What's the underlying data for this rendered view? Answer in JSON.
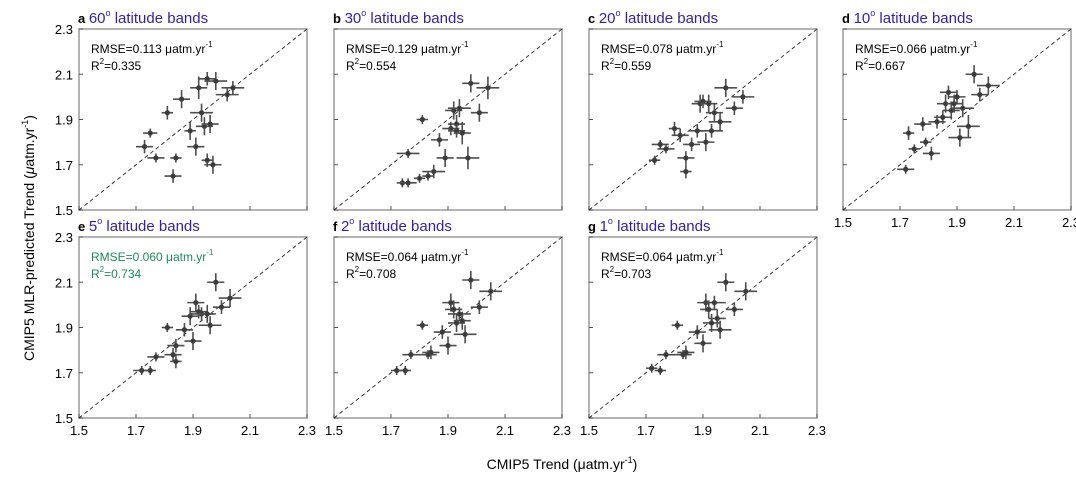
{
  "figure": {
    "ylabel": "CMIP5 MLR-predicted Trend (μatm.yr⁻¹)",
    "xlabel_main": "CMIP5 Trend (μatm.yr",
    "xlabel_sup": "-1",
    "xlabel_close": ")",
    "highlight_color": "#1a8c5c",
    "title_color": "#2e1fb0",
    "point_color": "#4d4d4d"
  },
  "chart_data": [
    {
      "type": "scatter",
      "letter": "a",
      "title_num": "60",
      "title_sup": "o",
      "title_rest": " latitude bands",
      "rmse_text": "RMSE=0.113 μatm.yr",
      "rmse_sup": "-1",
      "r2_main": "R",
      "r2_sup": "2",
      "r2_val": "=0.335",
      "highlight": false,
      "xlim": [
        1.5,
        2.3
      ],
      "ylim": [
        1.5,
        2.3
      ],
      "xticks": [
        "1.5",
        "1.7",
        "1.9",
        "2.1",
        "2.3"
      ],
      "yticks": [
        "1.5",
        "1.7",
        "1.9",
        "2.1",
        "2.3"
      ],
      "points": [
        {
          "x": 1.73,
          "y": 1.78,
          "xe": 0.03,
          "ye": 0.03
        },
        {
          "x": 1.75,
          "y": 1.84,
          "xe": 0.025,
          "ye": 0.02
        },
        {
          "x": 1.77,
          "y": 1.73,
          "xe": 0.03,
          "ye": 0.02
        },
        {
          "x": 1.81,
          "y": 1.93,
          "xe": 0.02,
          "ye": 0.03
        },
        {
          "x": 1.83,
          "y": 1.65,
          "xe": 0.03,
          "ye": 0.03
        },
        {
          "x": 1.84,
          "y": 1.73,
          "xe": 0.02,
          "ye": 0.02
        },
        {
          "x": 1.86,
          "y": 1.99,
          "xe": 0.03,
          "ye": 0.04
        },
        {
          "x": 1.89,
          "y": 1.85,
          "xe": 0.02,
          "ye": 0.04
        },
        {
          "x": 1.91,
          "y": 1.78,
          "xe": 0.03,
          "ye": 0.04
        },
        {
          "x": 1.92,
          "y": 2.04,
          "xe": 0.03,
          "ye": 0.05
        },
        {
          "x": 1.93,
          "y": 1.93,
          "xe": 0.04,
          "ye": 0.04
        },
        {
          "x": 1.94,
          "y": 1.87,
          "xe": 0.03,
          "ye": 0.04
        },
        {
          "x": 1.95,
          "y": 1.72,
          "xe": 0.02,
          "ye": 0.03
        },
        {
          "x": 1.95,
          "y": 2.08,
          "xe": 0.03,
          "ye": 0.03
        },
        {
          "x": 1.96,
          "y": 1.88,
          "xe": 0.03,
          "ye": 0.04
        },
        {
          "x": 1.97,
          "y": 1.7,
          "xe": 0.03,
          "ye": 0.04
        },
        {
          "x": 1.98,
          "y": 2.07,
          "xe": 0.04,
          "ye": 0.04
        },
        {
          "x": 2.02,
          "y": 2.01,
          "xe": 0.04,
          "ye": 0.03
        },
        {
          "x": 2.04,
          "y": 2.04,
          "xe": 0.04,
          "ye": 0.03
        }
      ]
    },
    {
      "type": "scatter",
      "letter": "b",
      "title_num": "30",
      "title_sup": "o",
      "title_rest": " latitude bands",
      "rmse_text": "RMSE=0.129 μatm.yr",
      "rmse_sup": "-1",
      "r2_main": "R",
      "r2_sup": "2",
      "r2_val": "=0.554",
      "highlight": false,
      "xlim": [
        1.5,
        2.3
      ],
      "ylim": [
        1.5,
        2.3
      ],
      "xticks": [
        "1.5",
        "1.7",
        "1.9",
        "2.1",
        "2.3"
      ],
      "yticks": [
        "1.5",
        "1.7",
        "1.9",
        "2.1",
        "2.3"
      ],
      "points": [
        {
          "x": 1.74,
          "y": 1.62,
          "xe": 0.02,
          "ye": 0.02
        },
        {
          "x": 1.76,
          "y": 1.62,
          "xe": 0.03,
          "ye": 0.02
        },
        {
          "x": 1.76,
          "y": 1.75,
          "xe": 0.04,
          "ye": 0.02
        },
        {
          "x": 1.8,
          "y": 1.64,
          "xe": 0.02,
          "ye": 0.02
        },
        {
          "x": 1.81,
          "y": 1.9,
          "xe": 0.02,
          "ye": 0.02
        },
        {
          "x": 1.83,
          "y": 1.65,
          "xe": 0.02,
          "ye": 0.02
        },
        {
          "x": 1.85,
          "y": 1.67,
          "xe": 0.04,
          "ye": 0.03
        },
        {
          "x": 1.87,
          "y": 1.81,
          "xe": 0.03,
          "ye": 0.03
        },
        {
          "x": 1.89,
          "y": 1.73,
          "xe": 0.03,
          "ye": 0.04
        },
        {
          "x": 1.91,
          "y": 1.86,
          "xe": 0.03,
          "ye": 0.03
        },
        {
          "x": 1.92,
          "y": 1.94,
          "xe": 0.03,
          "ye": 0.04
        },
        {
          "x": 1.93,
          "y": 1.88,
          "xe": 0.03,
          "ye": 0.04
        },
        {
          "x": 1.93,
          "y": 1.85,
          "xe": 0.03,
          "ye": 0.03
        },
        {
          "x": 1.94,
          "y": 1.95,
          "xe": 0.04,
          "ye": 0.04
        },
        {
          "x": 1.95,
          "y": 1.84,
          "xe": 0.03,
          "ye": 0.05
        },
        {
          "x": 1.97,
          "y": 1.73,
          "xe": 0.04,
          "ye": 0.05
        },
        {
          "x": 1.98,
          "y": 2.06,
          "xe": 0.03,
          "ye": 0.04
        },
        {
          "x": 2.01,
          "y": 1.93,
          "xe": 0.03,
          "ye": 0.04
        },
        {
          "x": 2.04,
          "y": 2.04,
          "xe": 0.04,
          "ye": 0.05
        }
      ]
    },
    {
      "type": "scatter",
      "letter": "c",
      "title_num": "20",
      "title_sup": "o",
      "title_rest": " latitude bands",
      "rmse_text": "RMSE=0.078 μatm.yr",
      "rmse_sup": "-1",
      "r2_main": "R",
      "r2_sup": "2",
      "r2_val": "=0.559",
      "highlight": false,
      "xlim": [
        1.5,
        2.3
      ],
      "ylim": [
        1.5,
        2.3
      ],
      "xticks": [
        "1.5",
        "1.7",
        "1.9",
        "2.1",
        "2.3"
      ],
      "yticks": [
        "1.5",
        "1.7",
        "1.9",
        "2.1",
        "2.3"
      ],
      "points": [
        {
          "x": 1.73,
          "y": 1.72,
          "xe": 0.02,
          "ye": 0.02
        },
        {
          "x": 1.75,
          "y": 1.79,
          "xe": 0.03,
          "ye": 0.02
        },
        {
          "x": 1.77,
          "y": 1.77,
          "xe": 0.03,
          "ye": 0.02
        },
        {
          "x": 1.8,
          "y": 1.86,
          "xe": 0.02,
          "ye": 0.03
        },
        {
          "x": 1.82,
          "y": 1.83,
          "xe": 0.03,
          "ye": 0.03
        },
        {
          "x": 1.84,
          "y": 1.73,
          "xe": 0.03,
          "ye": 0.03
        },
        {
          "x": 1.84,
          "y": 1.67,
          "xe": 0.02,
          "ye": 0.03
        },
        {
          "x": 1.86,
          "y": 1.79,
          "xe": 0.03,
          "ye": 0.03
        },
        {
          "x": 1.88,
          "y": 1.85,
          "xe": 0.03,
          "ye": 0.03
        },
        {
          "x": 1.89,
          "y": 1.97,
          "xe": 0.03,
          "ye": 0.04
        },
        {
          "x": 1.9,
          "y": 1.98,
          "xe": 0.03,
          "ye": 0.03
        },
        {
          "x": 1.91,
          "y": 1.8,
          "xe": 0.03,
          "ye": 0.04
        },
        {
          "x": 1.92,
          "y": 1.97,
          "xe": 0.03,
          "ye": 0.04
        },
        {
          "x": 1.93,
          "y": 1.85,
          "xe": 0.04,
          "ye": 0.03
        },
        {
          "x": 1.94,
          "y": 1.93,
          "xe": 0.03,
          "ye": 0.04
        },
        {
          "x": 1.96,
          "y": 1.89,
          "xe": 0.04,
          "ye": 0.04
        },
        {
          "x": 1.98,
          "y": 2.04,
          "xe": 0.04,
          "ye": 0.04
        },
        {
          "x": 2.01,
          "y": 1.95,
          "xe": 0.03,
          "ye": 0.03
        },
        {
          "x": 2.04,
          "y": 2.0,
          "xe": 0.04,
          "ye": 0.03
        }
      ]
    },
    {
      "type": "scatter",
      "letter": "d",
      "title_num": "10",
      "title_sup": "o",
      "title_rest": " latitude bands",
      "rmse_text": "RMSE=0.066 μatm.yr",
      "rmse_sup": "-1",
      "r2_main": "R",
      "r2_sup": "2",
      "r2_val": "=0.667",
      "highlight": false,
      "xlim": [
        1.5,
        2.3
      ],
      "ylim": [
        1.5,
        2.3
      ],
      "xticks": [
        "1.5",
        "1.7",
        "1.9",
        "2.1",
        "2.3"
      ],
      "yticks": [
        "1.5",
        "1.7",
        "1.9",
        "2.1",
        "2.3"
      ],
      "points": [
        {
          "x": 1.72,
          "y": 1.68,
          "xe": 0.03,
          "ye": 0.02
        },
        {
          "x": 1.73,
          "y": 1.84,
          "xe": 0.02,
          "ye": 0.03
        },
        {
          "x": 1.75,
          "y": 1.77,
          "xe": 0.02,
          "ye": 0.02
        },
        {
          "x": 1.78,
          "y": 1.88,
          "xe": 0.03,
          "ye": 0.03
        },
        {
          "x": 1.79,
          "y": 1.8,
          "xe": 0.02,
          "ye": 0.02
        },
        {
          "x": 1.81,
          "y": 1.75,
          "xe": 0.03,
          "ye": 0.03
        },
        {
          "x": 1.83,
          "y": 1.89,
          "xe": 0.03,
          "ye": 0.03
        },
        {
          "x": 1.85,
          "y": 1.91,
          "xe": 0.03,
          "ye": 0.03
        },
        {
          "x": 1.86,
          "y": 1.97,
          "xe": 0.03,
          "ye": 0.04
        },
        {
          "x": 1.87,
          "y": 2.02,
          "xe": 0.03,
          "ye": 0.03
        },
        {
          "x": 1.88,
          "y": 1.94,
          "xe": 0.03,
          "ye": 0.04
        },
        {
          "x": 1.89,
          "y": 1.97,
          "xe": 0.03,
          "ye": 0.04
        },
        {
          "x": 1.9,
          "y": 2.0,
          "xe": 0.03,
          "ye": 0.03
        },
        {
          "x": 1.91,
          "y": 1.82,
          "xe": 0.04,
          "ye": 0.04
        },
        {
          "x": 1.92,
          "y": 1.95,
          "xe": 0.04,
          "ye": 0.04
        },
        {
          "x": 1.94,
          "y": 1.87,
          "xe": 0.04,
          "ye": 0.05
        },
        {
          "x": 1.96,
          "y": 2.1,
          "xe": 0.03,
          "ye": 0.04
        },
        {
          "x": 1.98,
          "y": 2.01,
          "xe": 0.03,
          "ye": 0.03
        },
        {
          "x": 2.01,
          "y": 2.05,
          "xe": 0.04,
          "ye": 0.04
        }
      ]
    },
    {
      "type": "scatter",
      "letter": "e",
      "title_num": "5",
      "title_sup": "o",
      "title_rest": " latitude bands",
      "rmse_text": "RMSE=0.060 μatm.yr",
      "rmse_sup": "-1",
      "r2_main": "R",
      "r2_sup": "2",
      "r2_val": "=0.734",
      "highlight": true,
      "xlim": [
        1.5,
        2.3
      ],
      "ylim": [
        1.5,
        2.3
      ],
      "xticks": [
        "1.5",
        "1.7",
        "1.9",
        "2.1",
        "2.3"
      ],
      "yticks": [
        "1.5",
        "1.7",
        "1.9",
        "2.1",
        "2.3"
      ],
      "points": [
        {
          "x": 1.72,
          "y": 1.71,
          "xe": 0.03,
          "ye": 0.02
        },
        {
          "x": 1.75,
          "y": 1.71,
          "xe": 0.02,
          "ye": 0.02
        },
        {
          "x": 1.77,
          "y": 1.77,
          "xe": 0.03,
          "ye": 0.02
        },
        {
          "x": 1.81,
          "y": 1.9,
          "xe": 0.02,
          "ye": 0.02
        },
        {
          "x": 1.83,
          "y": 1.78,
          "xe": 0.03,
          "ye": 0.03
        },
        {
          "x": 1.84,
          "y": 1.75,
          "xe": 0.02,
          "ye": 0.03
        },
        {
          "x": 1.84,
          "y": 1.82,
          "xe": 0.03,
          "ye": 0.03
        },
        {
          "x": 1.87,
          "y": 1.89,
          "xe": 0.03,
          "ye": 0.03
        },
        {
          "x": 1.89,
          "y": 1.95,
          "xe": 0.03,
          "ye": 0.04
        },
        {
          "x": 1.9,
          "y": 1.84,
          "xe": 0.03,
          "ye": 0.04
        },
        {
          "x": 1.91,
          "y": 2.01,
          "xe": 0.03,
          "ye": 0.04
        },
        {
          "x": 1.92,
          "y": 1.97,
          "xe": 0.03,
          "ye": 0.03
        },
        {
          "x": 1.93,
          "y": 1.96,
          "xe": 0.04,
          "ye": 0.03
        },
        {
          "x": 1.95,
          "y": 1.96,
          "xe": 0.03,
          "ye": 0.04
        },
        {
          "x": 1.96,
          "y": 1.91,
          "xe": 0.04,
          "ye": 0.04
        },
        {
          "x": 1.98,
          "y": 2.1,
          "xe": 0.03,
          "ye": 0.04
        },
        {
          "x": 2.0,
          "y": 1.99,
          "xe": 0.03,
          "ye": 0.03
        },
        {
          "x": 2.03,
          "y": 2.03,
          "xe": 0.04,
          "ye": 0.04
        }
      ]
    },
    {
      "type": "scatter",
      "letter": "f",
      "title_num": "2",
      "title_sup": "o",
      "title_rest": " latitude bands",
      "rmse_text": "RMSE=0.064 μatm.yr",
      "rmse_sup": "-1",
      "r2_main": "R",
      "r2_sup": "2",
      "r2_val": "=0.708",
      "highlight": false,
      "xlim": [
        1.5,
        2.3
      ],
      "ylim": [
        1.5,
        2.3
      ],
      "xticks": [
        "1.5",
        "1.7",
        "1.9",
        "2.1",
        "2.3"
      ],
      "yticks": [
        "1.5",
        "1.7",
        "1.9",
        "2.1",
        "2.3"
      ],
      "points": [
        {
          "x": 1.72,
          "y": 1.71,
          "xe": 0.02,
          "ye": 0.02
        },
        {
          "x": 1.75,
          "y": 1.71,
          "xe": 0.02,
          "ye": 0.02
        },
        {
          "x": 1.77,
          "y": 1.78,
          "xe": 0.03,
          "ye": 0.02
        },
        {
          "x": 1.81,
          "y": 1.91,
          "xe": 0.02,
          "ye": 0.02
        },
        {
          "x": 1.83,
          "y": 1.78,
          "xe": 0.03,
          "ye": 0.02
        },
        {
          "x": 1.84,
          "y": 1.79,
          "xe": 0.03,
          "ye": 0.03
        },
        {
          "x": 1.88,
          "y": 1.88,
          "xe": 0.03,
          "ye": 0.03
        },
        {
          "x": 1.9,
          "y": 1.82,
          "xe": 0.03,
          "ye": 0.04
        },
        {
          "x": 1.91,
          "y": 2.01,
          "xe": 0.03,
          "ye": 0.04
        },
        {
          "x": 1.92,
          "y": 1.98,
          "xe": 0.03,
          "ye": 0.04
        },
        {
          "x": 1.93,
          "y": 1.92,
          "xe": 0.03,
          "ye": 0.04
        },
        {
          "x": 1.94,
          "y": 1.96,
          "xe": 0.04,
          "ye": 0.03
        },
        {
          "x": 1.95,
          "y": 1.93,
          "xe": 0.03,
          "ye": 0.04
        },
        {
          "x": 1.96,
          "y": 1.87,
          "xe": 0.04,
          "ye": 0.04
        },
        {
          "x": 1.98,
          "y": 2.11,
          "xe": 0.03,
          "ye": 0.04
        },
        {
          "x": 2.01,
          "y": 1.99,
          "xe": 0.03,
          "ye": 0.03
        },
        {
          "x": 2.05,
          "y": 2.06,
          "xe": 0.04,
          "ye": 0.04
        }
      ]
    },
    {
      "type": "scatter",
      "letter": "g",
      "title_num": "1",
      "title_sup": "o",
      "title_rest": " latitude bands",
      "rmse_text": "RMSE=0.064 μatm.yr",
      "rmse_sup": "-1",
      "r2_main": "R",
      "r2_sup": "2",
      "r2_val": "=0.703",
      "highlight": false,
      "xlim": [
        1.5,
        2.3
      ],
      "ylim": [
        1.5,
        2.3
      ],
      "xticks": [
        "1.5",
        "1.7",
        "1.9",
        "2.1",
        "2.3"
      ],
      "yticks": [
        "1.5",
        "1.7",
        "1.9",
        "2.1",
        "2.3"
      ],
      "points": [
        {
          "x": 1.72,
          "y": 1.72,
          "xe": 0.02,
          "ye": 0.02
        },
        {
          "x": 1.75,
          "y": 1.71,
          "xe": 0.02,
          "ye": 0.02
        },
        {
          "x": 1.77,
          "y": 1.78,
          "xe": 0.03,
          "ye": 0.02
        },
        {
          "x": 1.81,
          "y": 1.91,
          "xe": 0.02,
          "ye": 0.02
        },
        {
          "x": 1.83,
          "y": 1.78,
          "xe": 0.03,
          "ye": 0.02
        },
        {
          "x": 1.84,
          "y": 1.79,
          "xe": 0.03,
          "ye": 0.03
        },
        {
          "x": 1.88,
          "y": 1.88,
          "xe": 0.03,
          "ye": 0.03
        },
        {
          "x": 1.9,
          "y": 1.83,
          "xe": 0.03,
          "ye": 0.04
        },
        {
          "x": 1.91,
          "y": 2.01,
          "xe": 0.03,
          "ye": 0.04
        },
        {
          "x": 1.92,
          "y": 1.98,
          "xe": 0.03,
          "ye": 0.04
        },
        {
          "x": 1.93,
          "y": 1.92,
          "xe": 0.03,
          "ye": 0.04
        },
        {
          "x": 1.94,
          "y": 2.01,
          "xe": 0.04,
          "ye": 0.03
        },
        {
          "x": 1.95,
          "y": 1.94,
          "xe": 0.03,
          "ye": 0.04
        },
        {
          "x": 1.96,
          "y": 1.89,
          "xe": 0.04,
          "ye": 0.04
        },
        {
          "x": 1.98,
          "y": 2.1,
          "xe": 0.03,
          "ye": 0.04
        },
        {
          "x": 2.01,
          "y": 1.98,
          "xe": 0.03,
          "ye": 0.03
        },
        {
          "x": 2.05,
          "y": 2.06,
          "xe": 0.04,
          "ye": 0.04
        }
      ]
    }
  ]
}
